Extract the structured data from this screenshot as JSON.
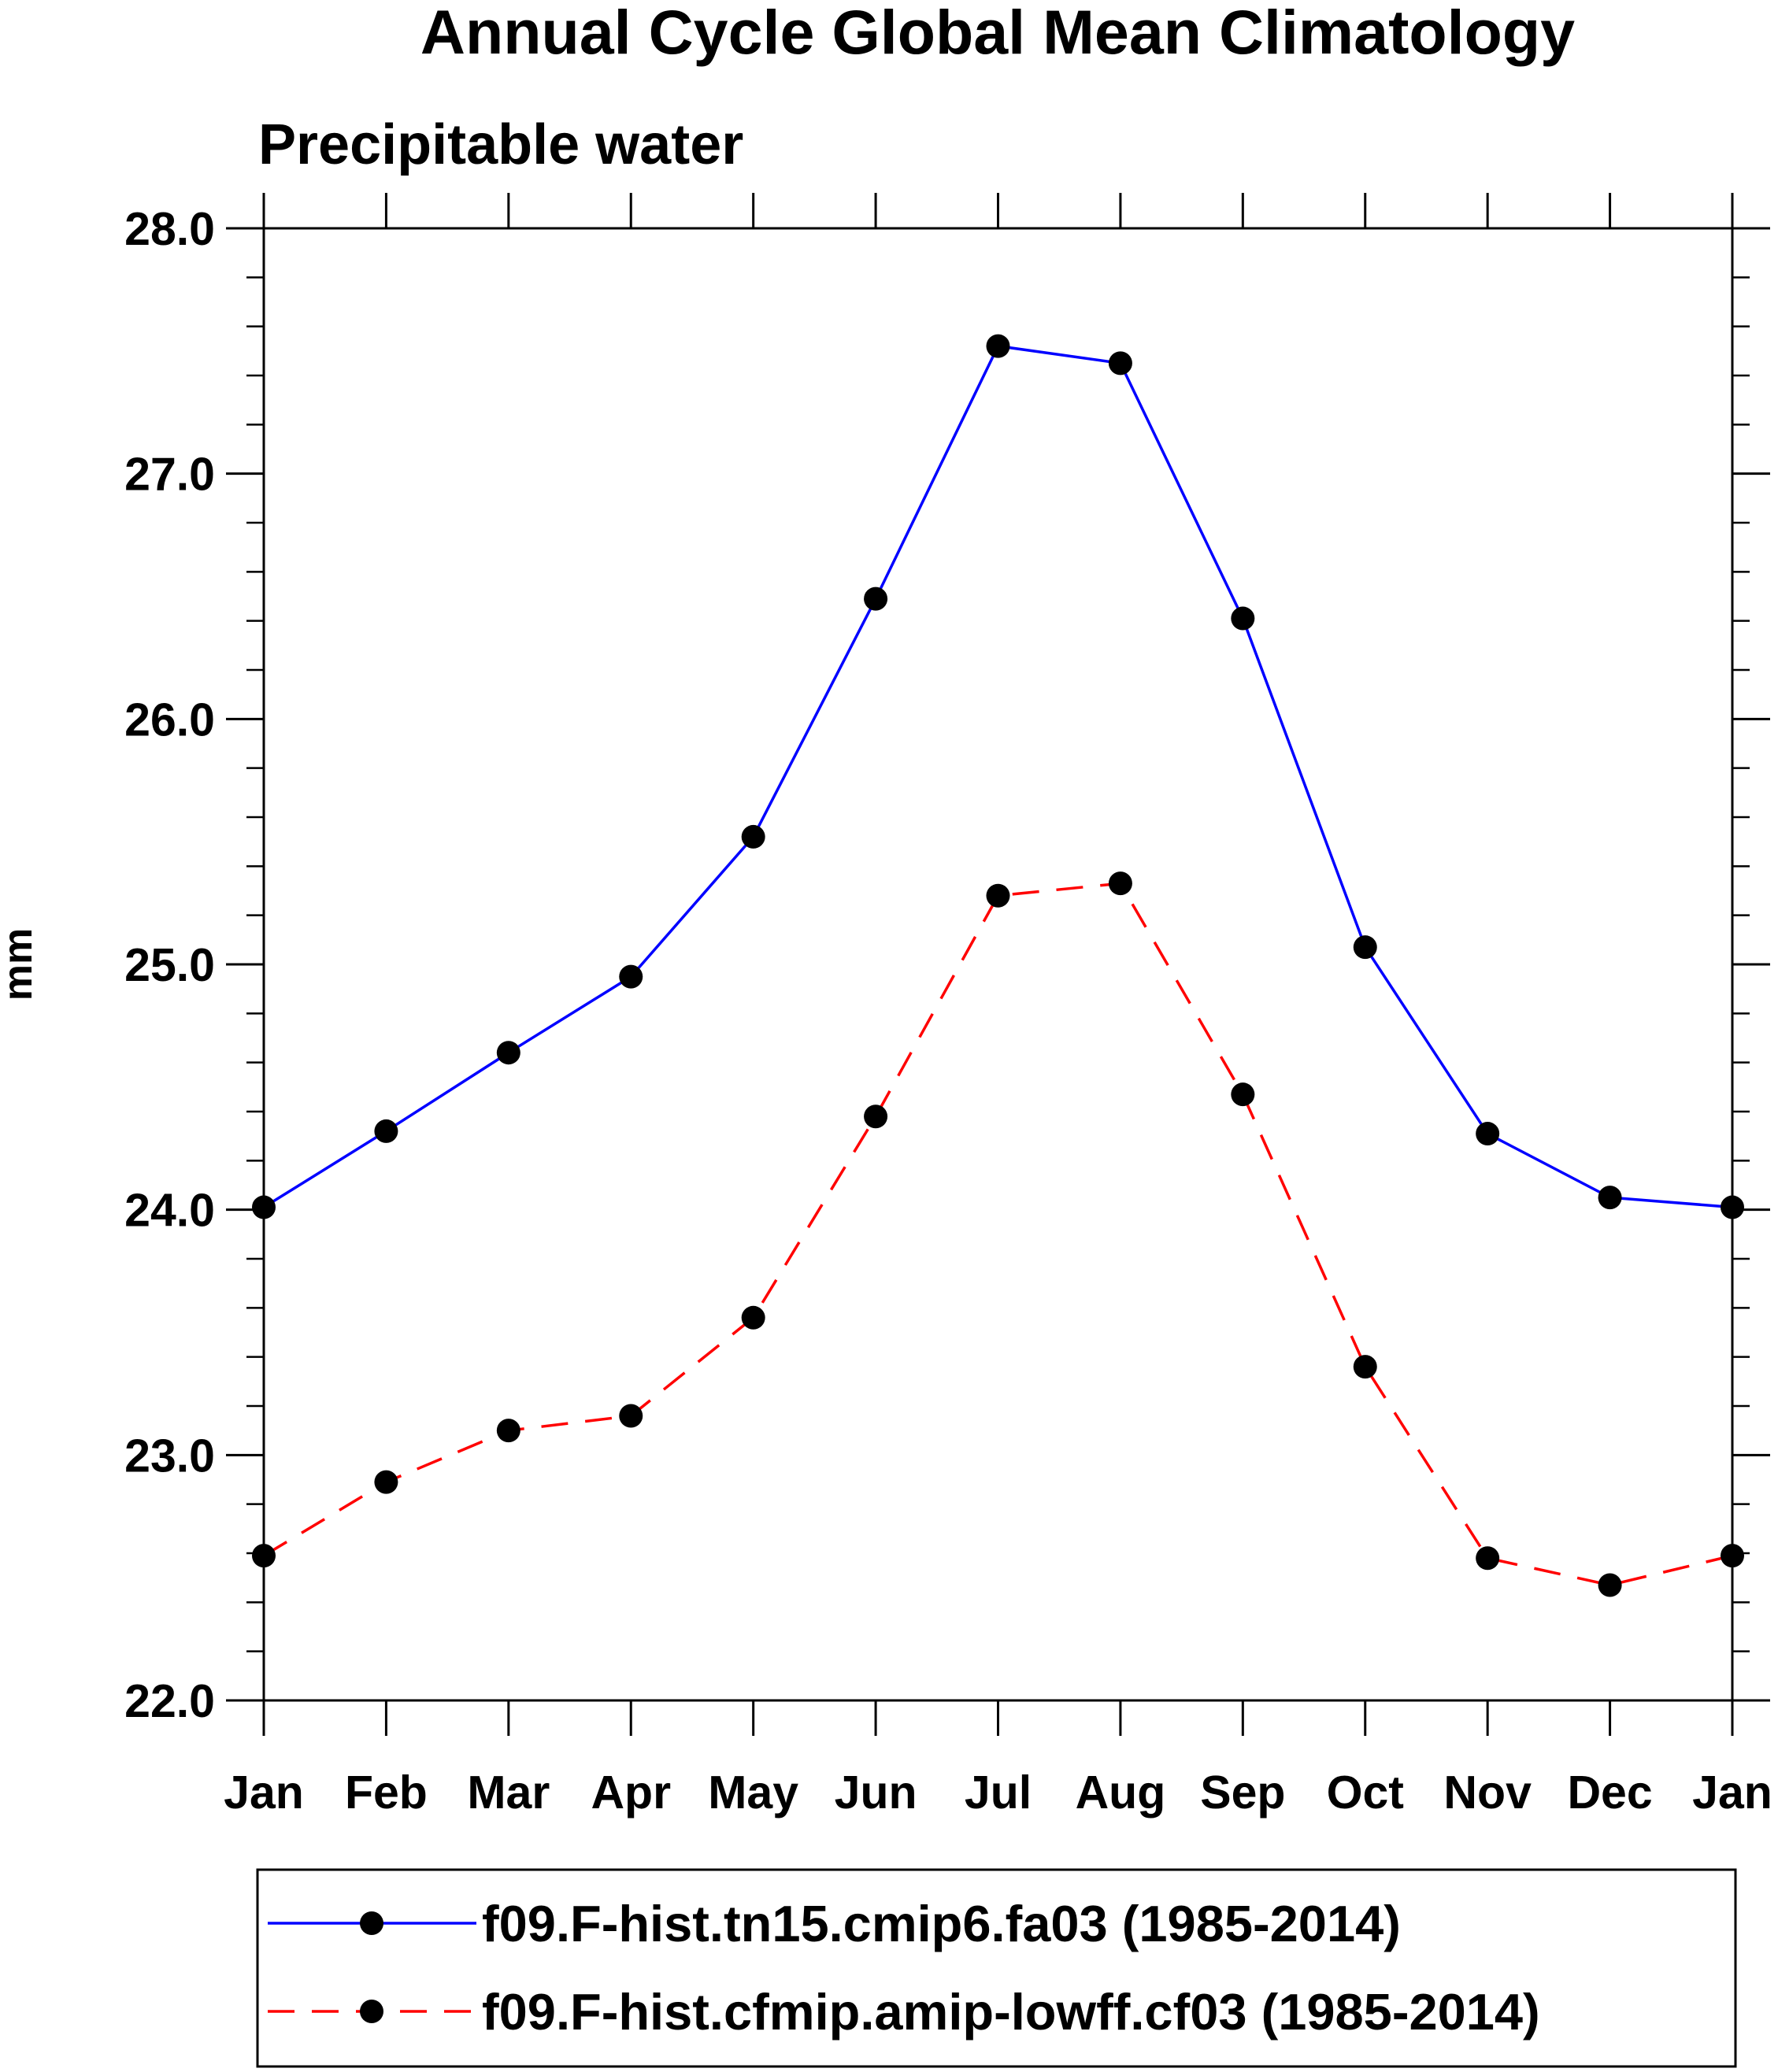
{
  "chart_data": {
    "type": "line",
    "title": "Annual Cycle Global Mean Climatology",
    "subtitle": "Precipitable water",
    "xlabel": "",
    "ylabel": "mm",
    "ylim": [
      22.0,
      28.0
    ],
    "y_ticks": [
      22.0,
      23.0,
      24.0,
      25.0,
      26.0,
      27.0,
      28.0
    ],
    "y_tick_labels": [
      "22.0",
      "23.0",
      "24.0",
      "25.0",
      "26.0",
      "27.0",
      "28.0"
    ],
    "y_minor_step": 0.2,
    "categories": [
      "Jan",
      "Feb",
      "Mar",
      "Apr",
      "May",
      "Jun",
      "Jul",
      "Aug",
      "Sep",
      "Oct",
      "Nov",
      "Dec",
      "Jan"
    ],
    "grid": false,
    "legend_position": "bottom",
    "series": [
      {
        "name": "f09.F-hist.tn15.cmip6.fa03 (1985-2014)",
        "color": "#0000ff",
        "dash": "solid",
        "marker": "filled-circle",
        "values": [
          24.01,
          24.32,
          24.64,
          24.95,
          25.52,
          26.49,
          27.52,
          27.45,
          26.41,
          25.07,
          24.31,
          24.05,
          24.01
        ]
      },
      {
        "name": "f09.F-hist.cfmip.amip-lowff.cf03 (1985-2014)",
        "color": "#ff0000",
        "dash": "dashed",
        "marker": "filled-circle",
        "values": [
          22.59,
          22.89,
          23.1,
          23.16,
          23.56,
          24.38,
          25.28,
          25.33,
          24.47,
          23.36,
          22.58,
          22.47,
          22.59
        ]
      }
    ]
  }
}
